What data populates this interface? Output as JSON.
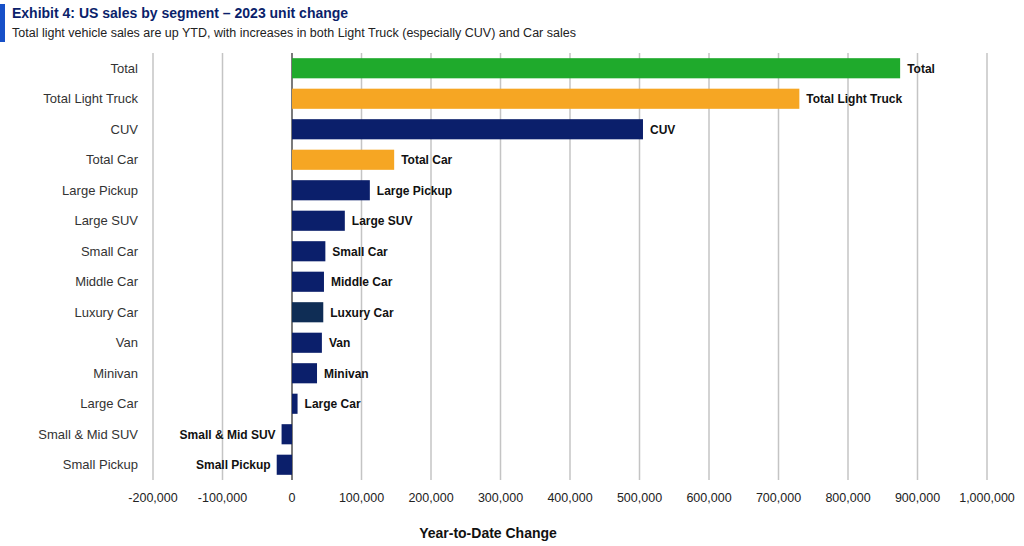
{
  "chart_data": {
    "type": "bar",
    "orientation": "horizontal",
    "title": "Exhibit 4: US sales by segment – 2023 unit change",
    "subtitle": "Total light vehicle sales are up YTD, with increases in both Light Truck (especially CUV) and Car sales",
    "x_label": "Year-to-Date Change",
    "categories": [
      "Total",
      "Total Light Truck",
      "CUV",
      "Total Car",
      "Large Pickup",
      "Large SUV",
      "Small Car",
      "Middle Car",
      "Luxury Car",
      "Van",
      "Minivan",
      "Large Car",
      "Small & Mid SUV",
      "Small Pickup"
    ],
    "values": [
      875000,
      730000,
      505000,
      147000,
      112000,
      76000,
      48000,
      46000,
      45000,
      43000,
      36000,
      8000,
      -15000,
      -22000
    ],
    "colors": [
      "#1faa2c",
      "#f6a623",
      "#0b1f6b",
      "#f6a623",
      "#0b1f6b",
      "#0b1f6b",
      "#0b1f6b",
      "#0b1f6b",
      "#0f2d55",
      "#0b1f6b",
      "#0b1f6b",
      "#0b1f6b",
      "#0b1f6b",
      "#0b1f6b"
    ],
    "xlim": [
      -200000,
      1000000
    ],
    "xticks": [
      {
        "value": -200000,
        "label": "-200,000"
      },
      {
        "value": -100000,
        "label": "-100,000"
      },
      0,
      {
        "value": 100000,
        "label": "100,000"
      },
      {
        "value": 200000,
        "label": "200,000"
      },
      {
        "value": 300000,
        "label": "300,000"
      },
      {
        "value": 400000,
        "label": "400,000"
      },
      {
        "value": 500000,
        "label": "500,000"
      },
      {
        "value": 600000,
        "label": "600,000"
      },
      {
        "value": 700000,
        "label": "700,000"
      },
      {
        "value": 800000,
        "label": "800,000"
      },
      {
        "value": 900000,
        "label": "900,000"
      },
      {
        "value": 1000000,
        "label": "1,000,000"
      }
    ],
    "grid": true
  }
}
